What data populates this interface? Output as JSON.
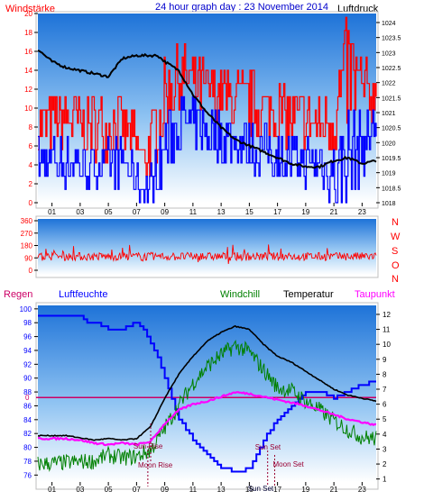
{
  "header": {
    "title": "24 hour graph day : 23 November 2014",
    "wind_label": "Windstärke",
    "pressure_label": "Luftdruck"
  },
  "legend2": {
    "rain": "Regen",
    "humidity": "Luftfeuchte",
    "windchill": "Windchill",
    "temperature": "Temperatur",
    "dewpoint": "Taupunkt"
  },
  "compass": [
    "N",
    "W",
    "S",
    "O",
    "N"
  ],
  "colors": {
    "wind": "#ff0000",
    "gust_low": "#0000ff",
    "pressure": "#000000",
    "humidity": "#0000ff",
    "windchill": "#008000",
    "temperature": "#000000",
    "dewpoint": "#ff00ff",
    "rain": "#cc0066",
    "title": "#0000cc",
    "sky_top": "#1e73d8",
    "sky_bottom": "#ffffff"
  },
  "chart_data": [
    {
      "type": "line",
      "name_ref": "wind-pressure",
      "x_ticks": [
        "01",
        "03",
        "05",
        "07",
        "09",
        "11",
        "13",
        "15",
        "17",
        "19",
        "21",
        "23"
      ],
      "left_axis": {
        "ticks": [
          0,
          2,
          4,
          6,
          8,
          10,
          12,
          14,
          16,
          18,
          20
        ],
        "ylim": [
          0,
          20
        ]
      },
      "right_axis": {
        "ticks": [
          1018,
          1018.5,
          1019,
          1019.5,
          1020,
          1020.5,
          1021,
          1021.5,
          1022,
          1022.5,
          1023,
          1023.5,
          1024
        ],
        "ylim": [
          1018,
          1024.3
        ]
      },
      "pressure": {
        "x": [
          0,
          1,
          2,
          3,
          4,
          5,
          6,
          7,
          8,
          8.5,
          9,
          10,
          10.5,
          11,
          12,
          13,
          14,
          15,
          16,
          17,
          18,
          19,
          20,
          21,
          22,
          23,
          24
        ],
        "y": [
          1023.1,
          1022.7,
          1022.5,
          1022.4,
          1022.3,
          1022.2,
          1022.8,
          1022.9,
          1022.9,
          1022.9,
          1022.7,
          1022.4,
          1022.0,
          1021.6,
          1021.0,
          1020.5,
          1020.1,
          1019.9,
          1019.7,
          1019.5,
          1019.3,
          1019.2,
          1019.2,
          1019.4,
          1019.5,
          1019.3,
          1019.4
        ]
      },
      "wind_band": {
        "x": [
          0,
          2,
          4,
          6,
          7,
          7.5,
          8,
          9,
          10,
          12,
          14,
          16,
          18,
          20,
          21,
          22,
          23,
          24
        ],
        "low": [
          4,
          4,
          3,
          4,
          2,
          1,
          1,
          5,
          8,
          7,
          6,
          5,
          4,
          4,
          2,
          4,
          5,
          8
        ],
        "high": [
          10,
          11,
          10,
          10,
          8,
          6,
          8,
          14,
          16,
          14,
          13,
          12,
          11,
          10,
          12,
          18,
          14,
          13
        ]
      }
    },
    {
      "type": "line",
      "name_ref": "wind-direction",
      "left_axis": {
        "ticks": [
          0,
          90,
          180,
          270,
          360
        ],
        "ylim": [
          0,
          360
        ]
      },
      "direction_mean": 100,
      "direction_spread": [
        40,
        190
      ]
    },
    {
      "type": "line",
      "name_ref": "weather",
      "x_ticks": [
        "01",
        "03",
        "05",
        "07",
        "09",
        "11",
        "13",
        "15",
        "17",
        "19",
        "21",
        "23"
      ],
      "left_axis": {
        "ticks": [
          76,
          78,
          80,
          82,
          84,
          86,
          88,
          90,
          92,
          94,
          96,
          98,
          100
        ],
        "ylim": [
          75,
          100.5
        ]
      },
      "right_axis": {
        "ticks": [
          1,
          2,
          3,
          4,
          5,
          6,
          7,
          8,
          9,
          10,
          11,
          12
        ],
        "ylim": [
          0.8,
          12.6
        ]
      },
      "rain_level": "0",
      "humidity": {
        "x": [
          0,
          1,
          2,
          3,
          3.5,
          4,
          5,
          6,
          7,
          7.5,
          8,
          8.5,
          9,
          9.5,
          10,
          11,
          12,
          13,
          14,
          14.5,
          15,
          15.5,
          16,
          17,
          18,
          19,
          20,
          21,
          22,
          23,
          24
        ],
        "y": [
          99,
          99,
          99,
          99,
          98,
          98,
          97,
          97,
          98,
          97,
          95,
          93,
          90,
          87,
          84,
          81,
          79,
          77,
          76.5,
          76.5,
          77,
          79,
          81,
          84,
          86,
          88,
          88,
          87,
          88,
          89,
          89.5
        ]
      },
      "temperature": {
        "x": [
          0,
          2,
          4,
          5,
          6,
          7,
          8,
          9,
          10,
          11,
          12,
          13,
          14,
          15,
          16,
          17,
          18,
          19,
          20,
          21,
          22,
          23,
          24
        ],
        "y": [
          3.9,
          3.9,
          3.6,
          3.7,
          3.6,
          3.7,
          4.5,
          6.4,
          8.0,
          9.2,
          10.2,
          10.8,
          11.2,
          11.0,
          10.0,
          9.2,
          8.8,
          8.2,
          7.6,
          7.0,
          6.6,
          6.4,
          6.2
        ]
      },
      "windchill": {
        "x": [
          0,
          2,
          4,
          5,
          6,
          7,
          8,
          9,
          10,
          11,
          12,
          13,
          14,
          15,
          16,
          17,
          18,
          19,
          20,
          21,
          22,
          23,
          24
        ],
        "y": [
          2.0,
          2.1,
          2.2,
          2.6,
          2.4,
          2.5,
          2.9,
          4.4,
          5.9,
          7.4,
          8.5,
          9.3,
          9.9,
          9.5,
          8.3,
          7.1,
          6.9,
          6.2,
          5.6,
          4.9,
          4.3,
          3.8,
          3.7
        ]
      },
      "dewpoint": {
        "x": [
          0,
          2,
          3,
          4,
          5,
          6,
          7,
          8,
          9,
          10,
          11,
          12,
          13,
          14,
          15,
          16,
          17,
          18,
          19,
          20,
          21,
          22,
          23,
          24
        ],
        "y": [
          3.7,
          3.7,
          3.6,
          3.4,
          3.3,
          3.4,
          3.3,
          3.5,
          4.7,
          5.6,
          6.0,
          6.2,
          6.5,
          6.8,
          6.7,
          6.5,
          6.3,
          6.1,
          5.9,
          5.6,
          5.3,
          5.0,
          4.8,
          4.6
        ]
      },
      "annotations": {
        "sun_rise": {
          "label": "Sun Rise",
          "hour": 7.8
        },
        "moon_rise": {
          "label": "Moon Rise",
          "hour": 8.0
        },
        "sun_set": {
          "label": "Sun Set",
          "hour": 16.3
        },
        "moon_set": {
          "label": "Moon Set",
          "hour": 16.8
        }
      }
    }
  ]
}
